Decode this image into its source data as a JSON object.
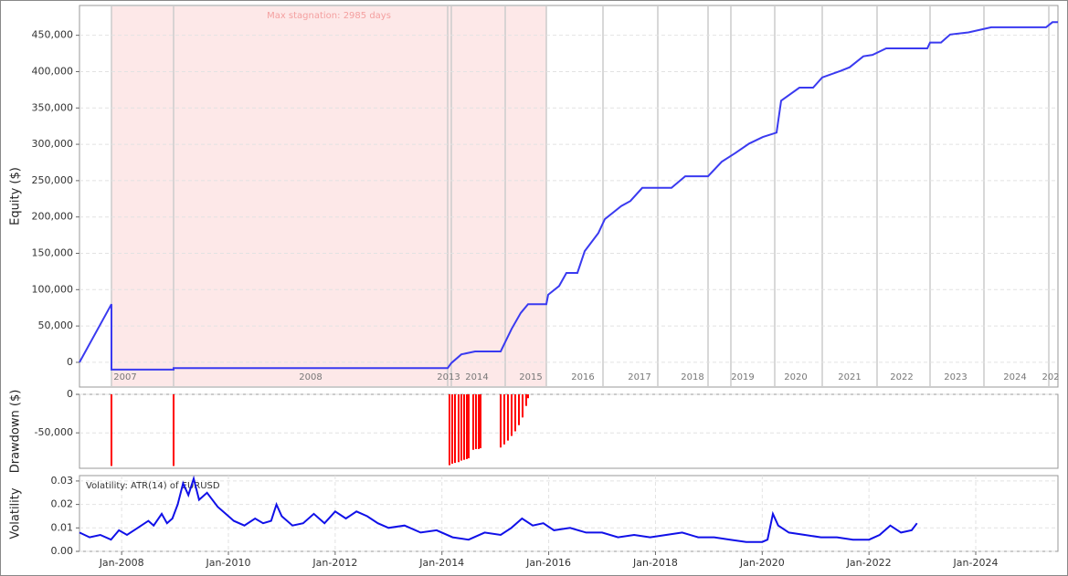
{
  "chart_data": [
    {
      "type": "line",
      "y_label": "Equity ($)",
      "xlim": [
        0,
        1071
      ],
      "ylim": [
        -34000,
        491000
      ],
      "yticks": [
        0,
        {
          "value": 50000,
          "label": "50,000"
        },
        {
          "value": 100000,
          "label": "100,000"
        },
        {
          "value": 150000,
          "label": "150,000"
        },
        {
          "value": 200000,
          "label": "200,000"
        },
        {
          "value": 250000,
          "label": "250,000"
        },
        {
          "value": 300000,
          "label": "300,000"
        },
        {
          "value": 350000,
          "label": "350,000"
        },
        {
          "value": 400000,
          "label": "400,000"
        },
        {
          "value": 450000,
          "label": "450,000"
        }
      ],
      "xticks": [
        {
          "value": 50,
          "label": "2007"
        },
        {
          "value": 253,
          "label": "2008"
        },
        {
          "value": 404,
          "label": "2013"
        },
        {
          "value": 435,
          "label": "2014"
        },
        {
          "value": 494,
          "label": "2015"
        },
        {
          "value": 551,
          "label": "2016"
        },
        {
          "value": 613,
          "label": "2017"
        },
        {
          "value": 671,
          "label": "2018"
        },
        {
          "value": 726,
          "label": "2019"
        },
        {
          "value": 784,
          "label": "2020"
        },
        {
          "value": 843,
          "label": "2021"
        },
        {
          "value": 900,
          "label": "2022"
        },
        {
          "value": 959,
          "label": "2023"
        },
        {
          "value": 1024,
          "label": "2024"
        },
        {
          "value": 1063,
          "label": "202"
        }
      ],
      "year_lines": [
        35,
        103,
        403,
        407,
        466,
        511,
        573,
        633,
        688,
        713,
        761,
        813,
        873,
        931,
        990,
        1061
      ],
      "stagnation": {
        "start": 35,
        "end": 511,
        "label": "Max stagnation: 2985 days",
        "color": "#fde8e8"
      },
      "grid": true,
      "series": [
        {
          "color": "#3a3af0",
          "x": [
            0,
            35,
            35,
            103,
            103,
            403,
            407,
            418,
            433,
            461,
            473,
            483,
            491,
            511,
            513,
            525,
            533,
            545,
            553,
            568,
            575,
            593,
            603,
            616,
            648,
            663,
            688,
            703,
            718,
            733,
            748,
            763,
            768,
            788,
            803,
            813,
            833,
            843,
            858,
            868,
            883,
            928,
            931,
            943,
            953,
            973,
            998,
            1058,
            1065,
            1071
          ],
          "values": [
            0,
            80000,
            -10000,
            -10000,
            -8000,
            -8000,
            -1000,
            11000,
            15000,
            15000,
            46000,
            68000,
            80000,
            80000,
            93000,
            105000,
            123000,
            123000,
            153000,
            178000,
            197000,
            215000,
            222000,
            240000,
            240000,
            256000,
            256000,
            276000,
            288000,
            301000,
            310000,
            316000,
            360000,
            378000,
            378000,
            392000,
            401000,
            406000,
            421000,
            423000,
            432000,
            432000,
            440000,
            440000,
            451000,
            454000,
            461000,
            461000,
            468000,
            468000
          ]
        }
      ]
    },
    {
      "type": "bar",
      "y_label": "Drawdown ($)",
      "xlim": [
        0,
        1071
      ],
      "ylim": [
        -96000,
        0
      ],
      "yticks": [
        0,
        {
          "value": -50000,
          "label": "-50,000"
        }
      ],
      "grid": true,
      "series": [
        {
          "color": "#ff0000",
          "x": [
            35,
            103,
            405,
            408,
            411,
            415,
            418,
            421,
            424,
            426,
            431,
            434,
            437,
            439,
            461,
            465,
            469,
            473,
            477,
            481,
            485,
            489,
            491
          ],
          "values": [
            -93000,
            -93000,
            -92000,
            -90000,
            -89000,
            -88000,
            -86000,
            -85000,
            -84000,
            -83000,
            -72000,
            -71000,
            -71000,
            -70000,
            -69000,
            -65000,
            -60000,
            -54000,
            -48000,
            -40000,
            -30000,
            -15000,
            -5000
          ]
        }
      ]
    },
    {
      "type": "line",
      "y_label": "Volatility",
      "annotation": "Volatility: ATR(14) of EURUSD",
      "xlim": [
        2007.21,
        2025.54
      ],
      "ylim": [
        0,
        0.0323
      ],
      "yticks": [
        {
          "value": 0,
          "label": "0.00"
        },
        {
          "value": 0.01,
          "label": "0.01"
        },
        {
          "value": 0.02,
          "label": "0.02"
        },
        {
          "value": 0.03,
          "label": "0.03"
        }
      ],
      "xticks": [
        {
          "value": 2008,
          "label": "Jan-2008"
        },
        {
          "value": 2010,
          "label": "Jan-2010"
        },
        {
          "value": 2012,
          "label": "Jan-2012"
        },
        {
          "value": 2014,
          "label": "Jan-2014"
        },
        {
          "value": 2016,
          "label": "Jan-2016"
        },
        {
          "value": 2018,
          "label": "Jan-2018"
        },
        {
          "value": 2020,
          "label": "Jan-2020"
        },
        {
          "value": 2022,
          "label": "Jan-2022"
        },
        {
          "value": 2024,
          "label": "Jan-2024"
        }
      ],
      "grid": true,
      "series": [
        {
          "color": "#1010e8",
          "x": [
            2007.21,
            2007.4,
            2007.6,
            2007.8,
            2007.95,
            2008.1,
            2008.3,
            2008.5,
            2008.6,
            2008.75,
            2008.85,
            2008.95,
            2009.05,
            2009.15,
            2009.25,
            2009.35,
            2009.45,
            2009.6,
            2009.8,
            2009.95,
            2010.1,
            2010.3,
            2010.5,
            2010.65,
            2010.8,
            2010.9,
            2011.0,
            2011.2,
            2011.4,
            2011.6,
            2011.8,
            2012.0,
            2012.2,
            2012.4,
            2012.6,
            2012.8,
            2013.0,
            2013.3,
            2013.6,
            2013.9,
            2014.2,
            2014.5,
            2014.8,
            2015.1,
            2015.3,
            2015.5,
            2015.7,
            2015.9,
            2016.1,
            2016.4,
            2016.7,
            2017.0,
            2017.3,
            2017.6,
            2017.9,
            2018.2,
            2018.5,
            2018.8,
            2019.1,
            2019.4,
            2019.7,
            2020.0,
            2020.1,
            2020.2,
            2020.3,
            2020.5,
            2020.8,
            2021.1,
            2021.4,
            2021.7,
            2022.0,
            2022.2,
            2022.4,
            2022.6,
            2022.8,
            2022.9
          ],
          "values": [
            0.008,
            0.006,
            0.007,
            0.005,
            0.009,
            0.007,
            0.01,
            0.013,
            0.011,
            0.016,
            0.012,
            0.014,
            0.02,
            0.029,
            0.024,
            0.031,
            0.022,
            0.025,
            0.019,
            0.016,
            0.013,
            0.011,
            0.014,
            0.012,
            0.013,
            0.02,
            0.015,
            0.011,
            0.012,
            0.016,
            0.012,
            0.017,
            0.014,
            0.017,
            0.015,
            0.012,
            0.01,
            0.011,
            0.008,
            0.009,
            0.006,
            0.005,
            0.008,
            0.007,
            0.01,
            0.014,
            0.011,
            0.012,
            0.009,
            0.01,
            0.008,
            0.008,
            0.006,
            0.007,
            0.006,
            0.007,
            0.008,
            0.006,
            0.006,
            0.005,
            0.004,
            0.004,
            0.005,
            0.016,
            0.011,
            0.008,
            0.007,
            0.006,
            0.006,
            0.005,
            0.005,
            0.007,
            0.011,
            0.008,
            0.009,
            0.012
          ]
        }
      ]
    }
  ]
}
